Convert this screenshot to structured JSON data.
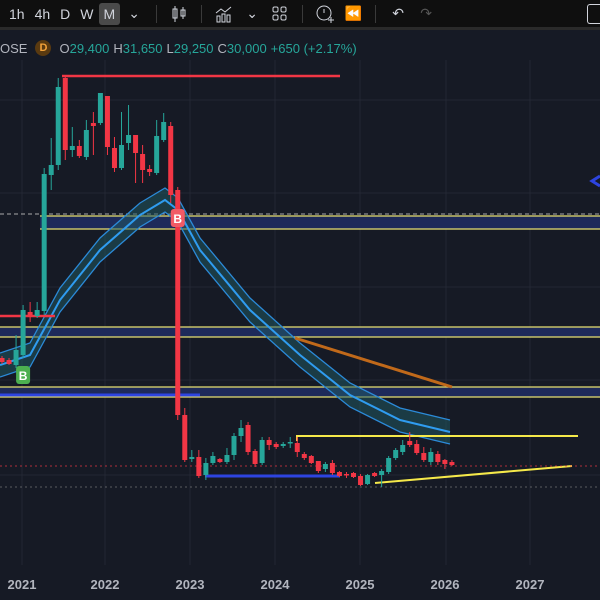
{
  "toolbar": {
    "timeframes": [
      "1h",
      "4h",
      "D",
      "W",
      "M"
    ],
    "active_timeframe": "M",
    "icons": [
      "chevron-down-icon",
      "candles-icon",
      "indicators-icon",
      "chevron-down-icon",
      "layout-grid-icon",
      "alert-add-icon",
      "replay-icon",
      "undo-icon",
      "redo-icon"
    ]
  },
  "legend": {
    "symbol_suffix": "OSE",
    "badge": "D",
    "o_label": "O",
    "o": "29,400",
    "h_label": "H",
    "h": "31,650",
    "l_label": "L",
    "l": "29,250",
    "c_label": "C",
    "c": "30,000",
    "change": "+650 (+2.17%)"
  },
  "colors": {
    "up": "#26a69a",
    "down": "#f23645",
    "band": "#2196f3",
    "orange": "#c0691a",
    "yellow": "#f5e94a",
    "support": "#2d44e0"
  },
  "chart_data": {
    "type": "candlestick",
    "title": "",
    "xlabel": "",
    "ylabel": "",
    "value_unit": "relative price units (no price axis shown)",
    "first_candle": "2020-10",
    "interval": "1M",
    "x_tick_labels": [
      "2021",
      "2022",
      "2023",
      "2024",
      "2025",
      "2026",
      "2027"
    ],
    "ohlc": [
      [
        132,
        134,
        126,
        128
      ],
      [
        130,
        132,
        125,
        126
      ],
      [
        125,
        155,
        122,
        140
      ],
      [
        135,
        185,
        132,
        180
      ],
      [
        178,
        188,
        168,
        174
      ],
      [
        174,
        188,
        172,
        180
      ],
      [
        179,
        322,
        175,
        316
      ],
      [
        315,
        352,
        300,
        325
      ],
      [
        325,
        412,
        320,
        403
      ],
      [
        412,
        414,
        330,
        340
      ],
      [
        340,
        363,
        333,
        344
      ],
      [
        344,
        350,
        332,
        334
      ],
      [
        333,
        370,
        330,
        360
      ],
      [
        367,
        378,
        335,
        364
      ],
      [
        367,
        397,
        365,
        397
      ],
      [
        394,
        394,
        335,
        343
      ],
      [
        342,
        353,
        318,
        322
      ],
      [
        322,
        378,
        320,
        345
      ],
      [
        347,
        385,
        340,
        355
      ],
      [
        355,
        355,
        307,
        337
      ],
      [
        336,
        345,
        307,
        320
      ],
      [
        321,
        325,
        314,
        318
      ],
      [
        317,
        370,
        315,
        354
      ],
      [
        350,
        377,
        348,
        368
      ],
      [
        364,
        368,
        287,
        295
      ],
      [
        300,
        303,
        70,
        75
      ],
      [
        75,
        82,
        28,
        30
      ],
      [
        31,
        40,
        28,
        33
      ],
      [
        33,
        40,
        12,
        14
      ],
      [
        15,
        32,
        10,
        27
      ],
      [
        27,
        38,
        25,
        34
      ],
      [
        31,
        32,
        27,
        28
      ],
      [
        28,
        42,
        26,
        35
      ],
      [
        35,
        57,
        30,
        54
      ],
      [
        54,
        70,
        48,
        62
      ],
      [
        65,
        68,
        35,
        38
      ],
      [
        39,
        41,
        23,
        26
      ],
      [
        27,
        53,
        25,
        50
      ],
      [
        50,
        53,
        40,
        45
      ],
      [
        46,
        48,
        41,
        43
      ],
      [
        44,
        48,
        42,
        46
      ],
      [
        47,
        53,
        42,
        48
      ],
      [
        47,
        53,
        33,
        38
      ],
      [
        36,
        38,
        30,
        32
      ],
      [
        34,
        35,
        26,
        27
      ],
      [
        29,
        29,
        17,
        19
      ],
      [
        21,
        28,
        18,
        26
      ],
      [
        27,
        30,
        15,
        17
      ],
      [
        18,
        19,
        13,
        14
      ],
      [
        16,
        18,
        12,
        15
      ],
      [
        17,
        18,
        12,
        13
      ],
      [
        14,
        16,
        4,
        5
      ],
      [
        6,
        16,
        5,
        15
      ],
      [
        17,
        18,
        13,
        14
      ],
      [
        15,
        21,
        3,
        19
      ],
      [
        18,
        34,
        16,
        32
      ],
      [
        32,
        42,
        30,
        40
      ],
      [
        38,
        50,
        35,
        45
      ],
      [
        49,
        58,
        43,
        45
      ],
      [
        46,
        50,
        35,
        37
      ],
      [
        37,
        43,
        28,
        30
      ],
      [
        28,
        42,
        25,
        38
      ],
      [
        36,
        39,
        25,
        28
      ],
      [
        30,
        31,
        21,
        26
      ],
      [
        28,
        30,
        24,
        25
      ]
    ],
    "signals": [
      {
        "label": "B",
        "candle_index": 3,
        "side": "buy"
      },
      {
        "label": "B",
        "candle_index": 25,
        "side": "sell"
      }
    ]
  }
}
